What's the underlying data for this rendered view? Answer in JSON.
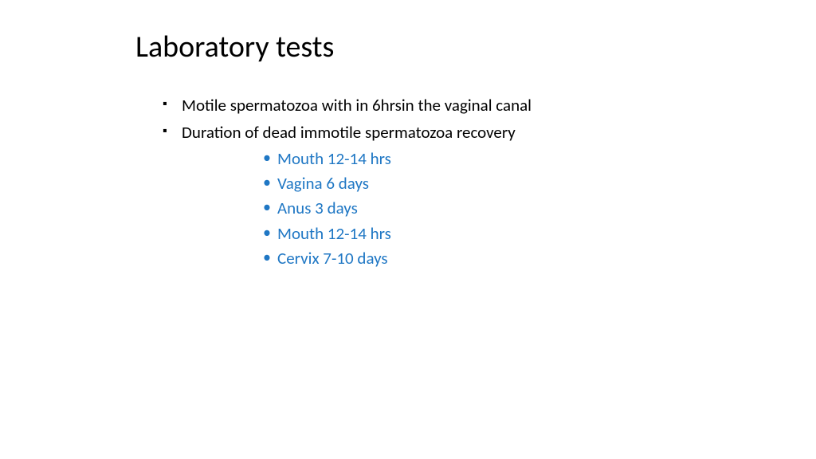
{
  "title": "Laboratory tests",
  "bullets_level1": [
    {
      "text": "Motile spermatozoa with in 6hrsin the vaginal canal"
    },
    {
      "text": "Duration of  dead immotile spermatozoa recovery"
    }
  ],
  "bullets_level2": [
    {
      "text": "Mouth 12-14 hrs"
    },
    {
      "text": "Vagina 6 days"
    },
    {
      "text": "Anus 3 days"
    },
    {
      "text": "Mouth 12-14 hrs"
    },
    {
      "text": "Cervix   7-10 days"
    }
  ],
  "style": {
    "background": "#ffffff",
    "title_color": "#000000",
    "title_fontsize": 38,
    "body_color": "#000000",
    "body_fontsize": 21,
    "accent_color": "#1f77c4",
    "l1_marker": "▪",
    "l2_marker": "•",
    "font_family": "Calibri"
  }
}
